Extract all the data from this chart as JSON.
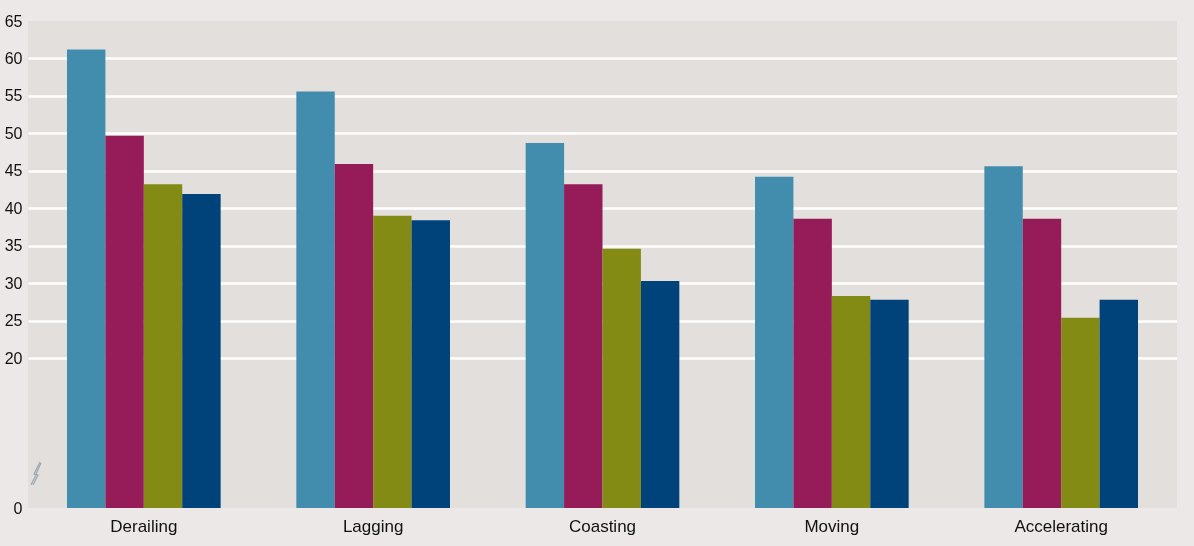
{
  "chart_data": {
    "type": "bar",
    "categories": [
      "Derailing",
      "Lagging",
      "Coasting",
      "Moving",
      "Accelerating"
    ],
    "series": [
      {
        "color": "#428dae",
        "values": [
          61.2,
          55.6,
          48.7,
          44.2,
          45.6
        ]
      },
      {
        "color": "#951b59",
        "values": [
          49.7,
          45.9,
          43.2,
          38.6,
          38.6
        ]
      },
      {
        "color": "#838b14",
        "values": [
          43.2,
          39.0,
          34.6,
          28.3,
          25.4
        ]
      },
      {
        "color": "#00427a",
        "values": [
          41.9,
          38.4,
          30.3,
          27.8,
          27.8
        ]
      }
    ],
    "ylim": [
      0,
      65
    ],
    "yticks": [
      0,
      20,
      25,
      30,
      35,
      40,
      45,
      50,
      55,
      60,
      65
    ],
    "grid": "y"
  }
}
